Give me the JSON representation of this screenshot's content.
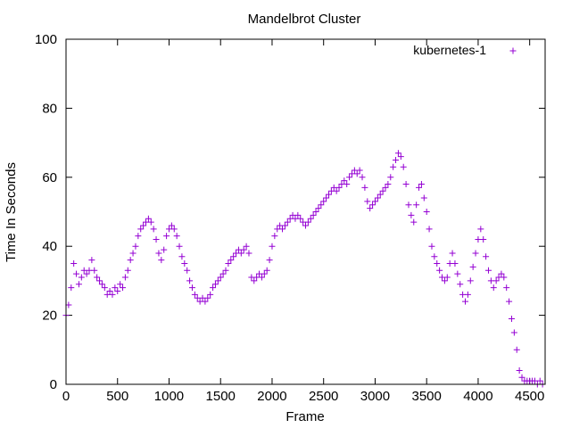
{
  "chart_data": {
    "type": "scatter",
    "title": "Mandelbrot Cluster",
    "xlabel": "Frame",
    "ylabel": "Time In Seconds",
    "xlim": [
      0,
      4650
    ],
    "ylim": [
      0,
      100
    ],
    "x_ticks": [
      0,
      500,
      1000,
      1500,
      2000,
      2500,
      3000,
      3500,
      4000,
      4500
    ],
    "y_ticks": [
      0,
      20,
      40,
      60,
      80,
      100
    ],
    "grid": false,
    "legend": "top-right",
    "marker": "+",
    "series": [
      {
        "name": "kubernetes-1",
        "color": "#9400d3",
        "points": [
          [
            0,
            20
          ],
          [
            25,
            23
          ],
          [
            50,
            28
          ],
          [
            75,
            35
          ],
          [
            100,
            32
          ],
          [
            125,
            29
          ],
          [
            150,
            31
          ],
          [
            175,
            33
          ],
          [
            200,
            32
          ],
          [
            225,
            33
          ],
          [
            250,
            36
          ],
          [
            275,
            33
          ],
          [
            300,
            31
          ],
          [
            325,
            30
          ],
          [
            350,
            29
          ],
          [
            375,
            28
          ],
          [
            400,
            26
          ],
          [
            425,
            27
          ],
          [
            450,
            26
          ],
          [
            475,
            28
          ],
          [
            500,
            27
          ],
          [
            525,
            29
          ],
          [
            550,
            28
          ],
          [
            575,
            31
          ],
          [
            600,
            33
          ],
          [
            625,
            36
          ],
          [
            650,
            38
          ],
          [
            675,
            40
          ],
          [
            700,
            43
          ],
          [
            725,
            45
          ],
          [
            750,
            46
          ],
          [
            775,
            47
          ],
          [
            800,
            48
          ],
          [
            825,
            47
          ],
          [
            850,
            45
          ],
          [
            875,
            42
          ],
          [
            900,
            38
          ],
          [
            925,
            36
          ],
          [
            950,
            39
          ],
          [
            975,
            43
          ],
          [
            1000,
            45
          ],
          [
            1025,
            46
          ],
          [
            1050,
            45
          ],
          [
            1075,
            43
          ],
          [
            1100,
            40
          ],
          [
            1125,
            37
          ],
          [
            1150,
            35
          ],
          [
            1175,
            33
          ],
          [
            1200,
            30
          ],
          [
            1225,
            28
          ],
          [
            1250,
            26
          ],
          [
            1275,
            25
          ],
          [
            1300,
            24
          ],
          [
            1325,
            25
          ],
          [
            1350,
            24
          ],
          [
            1375,
            25
          ],
          [
            1400,
            26
          ],
          [
            1425,
            28
          ],
          [
            1450,
            29
          ],
          [
            1475,
            30
          ],
          [
            1500,
            31
          ],
          [
            1525,
            32
          ],
          [
            1550,
            33
          ],
          [
            1575,
            35
          ],
          [
            1600,
            36
          ],
          [
            1625,
            37
          ],
          [
            1650,
            38
          ],
          [
            1675,
            39
          ],
          [
            1700,
            38
          ],
          [
            1725,
            39
          ],
          [
            1750,
            40
          ],
          [
            1775,
            38
          ],
          [
            1800,
            31
          ],
          [
            1825,
            30
          ],
          [
            1850,
            31
          ],
          [
            1875,
            32
          ],
          [
            1900,
            31
          ],
          [
            1925,
            32
          ],
          [
            1950,
            33
          ],
          [
            1975,
            36
          ],
          [
            2000,
            40
          ],
          [
            2025,
            43
          ],
          [
            2050,
            45
          ],
          [
            2075,
            46
          ],
          [
            2100,
            45
          ],
          [
            2125,
            46
          ],
          [
            2150,
            47
          ],
          [
            2175,
            48
          ],
          [
            2200,
            49
          ],
          [
            2225,
            48
          ],
          [
            2250,
            49
          ],
          [
            2275,
            48
          ],
          [
            2300,
            47
          ],
          [
            2325,
            46
          ],
          [
            2350,
            47
          ],
          [
            2375,
            48
          ],
          [
            2400,
            49
          ],
          [
            2425,
            50
          ],
          [
            2450,
            51
          ],
          [
            2475,
            52
          ],
          [
            2500,
            53
          ],
          [
            2525,
            54
          ],
          [
            2550,
            55
          ],
          [
            2575,
            56
          ],
          [
            2600,
            57
          ],
          [
            2625,
            56
          ],
          [
            2650,
            57
          ],
          [
            2675,
            58
          ],
          [
            2700,
            59
          ],
          [
            2725,
            58
          ],
          [
            2750,
            60
          ],
          [
            2775,
            61
          ],
          [
            2800,
            62
          ],
          [
            2825,
            61
          ],
          [
            2850,
            62
          ],
          [
            2875,
            60
          ],
          [
            2900,
            57
          ],
          [
            2925,
            53
          ],
          [
            2950,
            51
          ],
          [
            2975,
            52
          ],
          [
            3000,
            53
          ],
          [
            3025,
            54
          ],
          [
            3050,
            55
          ],
          [
            3075,
            56
          ],
          [
            3100,
            57
          ],
          [
            3125,
            58
          ],
          [
            3150,
            60
          ],
          [
            3175,
            63
          ],
          [
            3200,
            65
          ],
          [
            3225,
            67
          ],
          [
            3250,
            66
          ],
          [
            3275,
            63
          ],
          [
            3300,
            58
          ],
          [
            3325,
            52
          ],
          [
            3350,
            49
          ],
          [
            3375,
            47
          ],
          [
            3400,
            52
          ],
          [
            3425,
            57
          ],
          [
            3450,
            58
          ],
          [
            3475,
            54
          ],
          [
            3500,
            50
          ],
          [
            3525,
            45
          ],
          [
            3550,
            40
          ],
          [
            3575,
            37
          ],
          [
            3600,
            35
          ],
          [
            3625,
            33
          ],
          [
            3650,
            31
          ],
          [
            3675,
            30
          ],
          [
            3700,
            31
          ],
          [
            3725,
            35
          ],
          [
            3750,
            38
          ],
          [
            3775,
            35
          ],
          [
            3800,
            32
          ],
          [
            3825,
            29
          ],
          [
            3850,
            26
          ],
          [
            3875,
            24
          ],
          [
            3900,
            26
          ],
          [
            3925,
            30
          ],
          [
            3950,
            34
          ],
          [
            3975,
            38
          ],
          [
            4000,
            42
          ],
          [
            4025,
            45
          ],
          [
            4050,
            42
          ],
          [
            4075,
            37
          ],
          [
            4100,
            33
          ],
          [
            4125,
            30
          ],
          [
            4150,
            28
          ],
          [
            4175,
            30
          ],
          [
            4200,
            31
          ],
          [
            4225,
            32
          ],
          [
            4250,
            31
          ],
          [
            4275,
            28
          ],
          [
            4300,
            24
          ],
          [
            4325,
            19
          ],
          [
            4350,
            15
          ],
          [
            4375,
            10
          ],
          [
            4400,
            4
          ],
          [
            4425,
            2
          ],
          [
            4450,
            1
          ],
          [
            4475,
            1
          ],
          [
            4500,
            1
          ],
          [
            4525,
            1
          ],
          [
            4550,
            1
          ],
          [
            4575,
            0
          ],
          [
            4600,
            1
          ],
          [
            4625,
            0
          ]
        ]
      }
    ]
  }
}
